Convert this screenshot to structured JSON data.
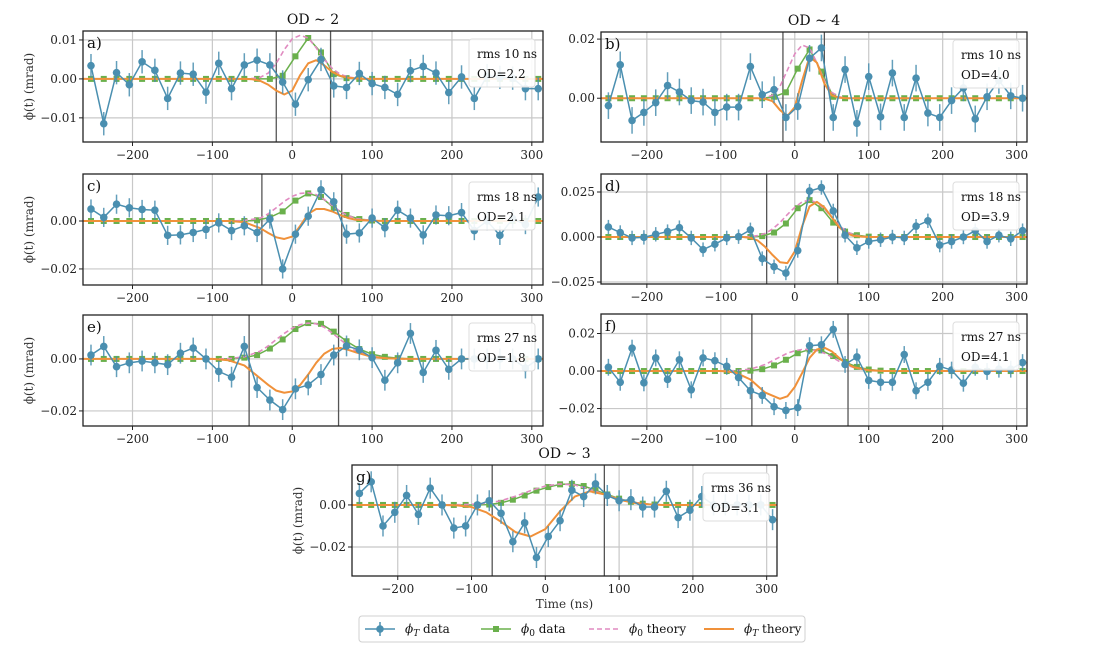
{
  "chart_data": {
    "type": "line",
    "figure_xlabel": "Time (ns)",
    "legend": {
      "placement": "bottom-center",
      "entries": [
        {
          "key": "phiT_data",
          "label": "ϕT data",
          "color": "#4a8fb0",
          "style": "line-errorbar-circle"
        },
        {
          "key": "phi0_data",
          "label": "ϕ0 data",
          "color": "#6ab04c",
          "style": "line-square"
        },
        {
          "key": "phi0_theory",
          "label": "ϕ0 theory",
          "color": "#e08ac0",
          "style": "dashed"
        },
        {
          "key": "phiT_theory",
          "label": "ϕT theory",
          "color": "#f0913a",
          "style": "solid"
        }
      ]
    },
    "column_titles": [
      "OD ∼ 2",
      "OD ∼ 4"
    ],
    "xticks": [
      -200,
      -100,
      0,
      100,
      200,
      300
    ],
    "xlim": [
      -262,
      314
    ],
    "t_data": [
      -252,
      -236,
      -220,
      -204,
      -188,
      -172,
      -156,
      -140,
      -124,
      -108,
      -92,
      -76,
      -60,
      -44,
      -28,
      -12,
      4,
      20,
      36,
      52,
      68,
      84,
      100,
      116,
      132,
      148,
      164,
      180,
      196,
      212,
      228,
      244,
      260,
      276,
      292,
      308
    ],
    "panels": [
      {
        "id": "a",
        "letter": "a)",
        "title": "OD ∼ 2",
        "ylabel": "ϕ(t) (mrad)",
        "ylim": [
          -0.0162,
          0.0123
        ],
        "yticks": [
          -0.01,
          0.0,
          0.01
        ],
        "ytick_labels": [
          "−0.01",
          "0.00",
          "0.01"
        ],
        "window": [
          -20,
          48
        ],
        "info": [
          "rms 10 ns",
          "OD=2.2"
        ],
        "phiT_data": [
          0.0034,
          -0.0115,
          0.0016,
          -0.0015,
          0.0044,
          0.0022,
          -0.005,
          0.0015,
          0.0012,
          -0.0034,
          0.004,
          -0.0025,
          0.0036,
          0.0048,
          0.0036,
          -0.0008,
          -0.0065,
          -0.0002,
          0.005,
          -0.0018,
          -0.0022,
          0.0014,
          -0.0012,
          -0.0022,
          -0.004,
          0.0021,
          0.0032,
          0.0015,
          -0.0035,
          0.0005,
          -0.005,
          0.0008,
          0.0004,
          0.0002,
          -0.0025,
          -0.0025
        ],
        "phiT_err": 0.003,
        "phi0_data": [
          0,
          0,
          0,
          0,
          0,
          0,
          0,
          0,
          0,
          0,
          0,
          0,
          0,
          0,
          0,
          0.0008,
          0.0058,
          0.0105,
          0.0068,
          0.0012,
          0.0002,
          0,
          0,
          0,
          0,
          0,
          0,
          0,
          0,
          0,
          0,
          0,
          0,
          0,
          0,
          0
        ],
        "theory_t": [
          -60,
          -50,
          -40,
          -30,
          -20,
          -10,
          0,
          10,
          20,
          30,
          40,
          50,
          60,
          70,
          80,
          90,
          100
        ],
        "phi0_theory": [
          0,
          0.0001,
          0.0004,
          0.0015,
          0.004,
          0.0075,
          0.0103,
          0.0112,
          0.0105,
          0.008,
          0.005,
          0.0027,
          0.0012,
          0.0005,
          0.0002,
          0.0001,
          0
        ],
        "phiT_theory": [
          0,
          -0.0001,
          -0.0005,
          -0.0015,
          -0.003,
          -0.004,
          -0.003,
          0.001,
          0.004,
          0.0048,
          0.0035,
          0.0018,
          0.0008,
          0.0003,
          0.0001,
          0,
          0
        ]
      },
      {
        "id": "b",
        "letter": "b)",
        "title": "OD ∼ 4",
        "ylabel": "",
        "ylim": [
          -0.0148,
          0.0224
        ],
        "yticks": [
          0.0,
          0.02
        ],
        "ytick_labels": [
          "0.00",
          "0.02"
        ],
        "window": [
          -16,
          40
        ],
        "info": [
          "rms 10 ns",
          "OD=4.0"
        ],
        "phiT_data": [
          -0.0025,
          0.0113,
          -0.0075,
          -0.0048,
          -0.0015,
          0.0043,
          0.0021,
          -0.0008,
          -0.0013,
          -0.0048,
          -0.003,
          -0.003,
          0.0107,
          0.0012,
          0.0029,
          -0.0065,
          -0.0028,
          0.0135,
          0.017,
          -0.0065,
          0.0097,
          -0.0085,
          0.0073,
          -0.0063,
          0.0085,
          -0.0065,
          0.0068,
          -0.005,
          -0.0065,
          -0.0008,
          0.0035,
          -0.007,
          0.0005,
          0.006,
          0.0008,
          0.0
        ],
        "phiT_err": 0.0045,
        "phi0_data": [
          0,
          0,
          0,
          0,
          0,
          0,
          0,
          0,
          0,
          0,
          0,
          0,
          0,
          0,
          0.0005,
          0.002,
          0.01,
          0.0165,
          0.009,
          0.0005,
          0,
          0,
          0,
          0,
          0,
          0,
          0,
          0,
          0,
          0,
          0,
          0,
          0,
          0,
          0,
          0
        ],
        "theory_t": [
          -50,
          -40,
          -30,
          -20,
          -10,
          0,
          10,
          20,
          30,
          40,
          50,
          60,
          70
        ],
        "phi0_theory": [
          0,
          0.0002,
          0.001,
          0.004,
          0.0095,
          0.015,
          0.018,
          0.017,
          0.012,
          0.006,
          0.002,
          0.0005,
          0
        ],
        "phiT_theory": [
          0,
          -0.0002,
          -0.001,
          -0.004,
          -0.006,
          -0.003,
          0.006,
          0.014,
          0.012,
          0.005,
          0.001,
          0.0002,
          0
        ]
      },
      {
        "id": "c",
        "letter": "c)",
        "title": "",
        "ylabel": "ϕ(t) (mrad)",
        "ylim": [
          -0.0267,
          0.0196
        ],
        "yticks": [
          -0.02,
          0.0
        ],
        "ytick_labels": [
          "−0.02",
          "0.00"
        ],
        "window": [
          -38,
          62
        ],
        "info": [
          "rms 18 ns",
          "OD=2.1"
        ],
        "phiT_data": [
          0.005,
          0.0015,
          0.007,
          0.0055,
          0.0048,
          0.0045,
          -0.006,
          -0.0058,
          -0.0048,
          -0.0035,
          -0.0008,
          -0.004,
          -0.002,
          -0.0048,
          0.0008,
          -0.02,
          -0.0055,
          0.002,
          0.013,
          0.008,
          -0.0055,
          -0.005,
          0.0012,
          -0.0028,
          0.0045,
          0.0012,
          -0.0058,
          0.0025,
          0.0022,
          0.0035,
          -0.004,
          0.0,
          -0.006,
          0.001,
          -0.0015,
          0.01
        ],
        "phiT_err": 0.004,
        "phi0_data": [
          0,
          0,
          0,
          0,
          0,
          0,
          0,
          0,
          0,
          0,
          0,
          0,
          0,
          0.0003,
          0.0015,
          0.004,
          0.0085,
          0.0115,
          0.01,
          0.0055,
          0.0025,
          0.0008,
          0.0002,
          0,
          0,
          0,
          0,
          0,
          0,
          0,
          0,
          0,
          0,
          0,
          0,
          0
        ],
        "theory_t": [
          -80,
          -60,
          -40,
          -30,
          -20,
          -10,
          0,
          10,
          20,
          30,
          40,
          50,
          60,
          70,
          80,
          100,
          120
        ],
        "phi0_theory": [
          0,
          0.0002,
          0.0012,
          0.003,
          0.0055,
          0.0082,
          0.0103,
          0.0115,
          0.0118,
          0.011,
          0.009,
          0.0065,
          0.004,
          0.0022,
          0.001,
          0.0002,
          0
        ],
        "phiT_theory": [
          0,
          -0.0005,
          -0.003,
          -0.005,
          -0.0068,
          -0.0075,
          -0.0065,
          -0.002,
          0.003,
          0.005,
          0.005,
          0.004,
          0.0025,
          0.0012,
          0.0005,
          0.0001,
          0
        ]
      },
      {
        "id": "d",
        "letter": "d)",
        "title": "",
        "ylabel": "",
        "ylim": [
          -0.0261,
          0.035
        ],
        "yticks": [
          -0.025,
          0.0,
          0.025
        ],
        "ytick_labels": [
          "−0.025",
          "0.000",
          "0.025"
        ],
        "window": [
          -38,
          58
        ],
        "info": [
          "rms 18 ns",
          "OD=3.9"
        ],
        "phiT_data": [
          0.0055,
          0.0025,
          -0.0005,
          -0.0002,
          0.0015,
          0.003,
          0.0052,
          -0.0005,
          -0.007,
          -0.004,
          -0.0005,
          0.0002,
          0.004,
          -0.012,
          -0.0165,
          -0.02,
          -0.0075,
          0.0255,
          0.0275,
          0.0145,
          0.001,
          -0.006,
          -0.0025,
          -0.0015,
          0.0,
          -0.0005,
          0.006,
          0.009,
          -0.0045,
          -0.0025,
          0.0,
          0.0035,
          -0.0025,
          0.001,
          -0.001,
          0.0035
        ],
        "phiT_err": 0.004,
        "phi0_data": [
          0,
          0,
          0,
          0,
          0,
          0,
          0,
          0,
          0,
          0,
          0,
          0,
          0,
          0.0005,
          0.0025,
          0.0075,
          0.016,
          0.0205,
          0.016,
          0.008,
          0.003,
          0.001,
          0.0002,
          0,
          0,
          0,
          0,
          0,
          0,
          0,
          0,
          0,
          0,
          0,
          0,
          0
        ],
        "theory_t": [
          -70,
          -60,
          -50,
          -40,
          -30,
          -20,
          -10,
          0,
          10,
          20,
          30,
          40,
          50,
          60,
          70,
          80,
          90,
          100
        ],
        "phi0_theory": [
          0,
          0.0002,
          0.0008,
          0.002,
          0.0045,
          0.008,
          0.0125,
          0.0165,
          0.0195,
          0.0205,
          0.019,
          0.0155,
          0.011,
          0.0065,
          0.003,
          0.0012,
          0.0004,
          0
        ],
        "phiT_theory": [
          0,
          -0.0005,
          -0.002,
          -0.0055,
          -0.01,
          -0.014,
          -0.0145,
          -0.008,
          0.006,
          0.017,
          0.0195,
          0.0165,
          0.011,
          0.0055,
          0.002,
          0.0006,
          0.0002,
          0
        ]
      },
      {
        "id": "e",
        "letter": "e)",
        "title": "",
        "ylabel": "ϕ(t) (mrad)",
        "ylim": [
          -0.0258,
          0.0169
        ],
        "yticks": [
          -0.02,
          0.0
        ],
        "ytick_labels": [
          "−0.02",
          "0.00"
        ],
        "window": [
          -54,
          58
        ],
        "info": [
          "rms 27 ns",
          "OD=1.8"
        ],
        "phiT_data": [
          0.0015,
          0.0048,
          -0.003,
          -0.0015,
          -0.0008,
          -0.0015,
          -0.0022,
          0.0022,
          0.0042,
          0.0,
          -0.0048,
          -0.007,
          0.0048,
          -0.011,
          -0.0158,
          -0.0195,
          -0.0115,
          -0.01,
          -0.006,
          0.0015,
          0.005,
          0.0035,
          0.0005,
          -0.0082,
          -0.0015,
          0.0098,
          -0.0052,
          0.0033,
          -0.004,
          0.0,
          0.0,
          0.0,
          0.0,
          0.0,
          -0.0035,
          0.0
        ],
        "phiT_err": 0.004,
        "phi0_data": [
          0,
          0,
          0,
          0,
          0,
          0,
          0,
          0,
          0,
          0,
          0,
          0,
          0.0005,
          0.0015,
          0.004,
          0.0075,
          0.0115,
          0.0138,
          0.0135,
          0.0105,
          0.0068,
          0.0038,
          0.0018,
          0.0008,
          0.0003,
          0,
          0,
          0,
          0,
          0,
          0,
          0,
          0,
          0,
          0,
          0
        ],
        "theory_t": [
          -100,
          -80,
          -60,
          -40,
          -30,
          -20,
          -10,
          0,
          10,
          20,
          30,
          40,
          50,
          60,
          70,
          80,
          100,
          120,
          140
        ],
        "phi0_theory": [
          0,
          0.0001,
          0.0008,
          0.003,
          0.005,
          0.0075,
          0.0098,
          0.0118,
          0.0132,
          0.0138,
          0.0135,
          0.0122,
          0.01,
          0.0075,
          0.005,
          0.003,
          0.001,
          0.0002,
          0
        ],
        "phiT_theory": [
          0,
          -0.0005,
          -0.0025,
          -0.0075,
          -0.01,
          -0.0122,
          -0.013,
          -0.0125,
          -0.01,
          -0.006,
          -0.0015,
          0.002,
          0.0038,
          0.0042,
          0.0035,
          0.0025,
          0.0008,
          0.0002,
          0
        ]
      },
      {
        "id": "f",
        "letter": "f)",
        "title": "",
        "ylabel": "",
        "ylim": [
          -0.0293,
          0.0304
        ],
        "yticks": [
          -0.02,
          0.0,
          0.02
        ],
        "ytick_labels": [
          "−0.02",
          "0.00",
          "0.02"
        ],
        "window": [
          -58,
          72
        ],
        "info": [
          "rms 27 ns",
          "OD=4.1"
        ],
        "phiT_data": [
          0.002,
          -0.006,
          0.0122,
          -0.0063,
          0.007,
          -0.0045,
          0.006,
          -0.01,
          0.007,
          0.0055,
          0.0025,
          -0.0035,
          -0.0105,
          -0.013,
          -0.019,
          -0.021,
          -0.0195,
          0.0135,
          0.014,
          0.0222,
          0.0035,
          0.0075,
          -0.005,
          -0.006,
          -0.006,
          0.0088,
          -0.0105,
          -0.006,
          0.0025,
          0.0005,
          -0.0065,
          0.002,
          -0.0002,
          0.001,
          0.001,
          0.0045
        ],
        "phiT_err": 0.0045,
        "phi0_data": [
          0,
          0,
          0,
          0,
          0,
          0,
          0,
          0,
          0,
          0,
          0,
          0,
          0.0002,
          0.001,
          0.003,
          0.006,
          0.0095,
          0.0115,
          0.011,
          0.008,
          0.0048,
          0.0022,
          0.0008,
          0.0002,
          0,
          0,
          0,
          0,
          0,
          0,
          0,
          0,
          0,
          0,
          0,
          0
        ],
        "theory_t": [
          -100,
          -80,
          -60,
          -40,
          -20,
          -10,
          0,
          10,
          20,
          30,
          40,
          50,
          60,
          70,
          80,
          100,
          120
        ],
        "phi0_theory": [
          0,
          0.0002,
          0.001,
          0.0035,
          0.0075,
          0.0095,
          0.0108,
          0.0115,
          0.0115,
          0.0108,
          0.0095,
          0.0075,
          0.0052,
          0.0032,
          0.0018,
          0.0004,
          0
        ],
        "phiT_theory": [
          0,
          -0.0008,
          -0.0045,
          -0.0115,
          -0.0148,
          -0.0135,
          -0.0085,
          -0.001,
          0.007,
          0.0115,
          0.0125,
          0.0105,
          0.007,
          0.004,
          0.002,
          0.0004,
          0
        ]
      },
      {
        "id": "g",
        "letter": "g)",
        "title": "OD ∼ 3",
        "ylabel": "ϕ(t) (mrad)",
        "ylim": [
          -0.0338,
          0.019
        ],
        "yticks": [
          -0.02,
          0.0
        ],
        "ytick_labels": [
          "−0.02",
          "0.00"
        ],
        "window": [
          -72,
          80
        ],
        "info": [
          "rms 36 ns",
          "OD=3.1"
        ],
        "xlabel": "Time (ns)",
        "phiT_data": [
          0.0055,
          0.011,
          -0.01,
          -0.0035,
          0.0045,
          -0.0045,
          0.008,
          0.0,
          -0.011,
          -0.01,
          0.0,
          0.002,
          -0.004,
          -0.0175,
          -0.0085,
          -0.025,
          -0.015,
          -0.0075,
          0.007,
          0.004,
          0.01,
          0.0045,
          0.002,
          0.0025,
          -0.001,
          -0.001,
          0.0065,
          -0.006,
          -0.0025,
          0.004,
          0.0,
          0.0,
          0.0,
          0.0,
          0.0,
          -0.007
        ],
        "phiT_err": 0.005,
        "phi0_data": [
          0,
          0,
          0,
          0,
          0,
          0,
          0,
          0,
          0,
          0,
          0,
          0.0002,
          0.001,
          0.0025,
          0.0045,
          0.0068,
          0.0085,
          0.0098,
          0.01,
          0.009,
          0.007,
          0.005,
          0.003,
          0.0015,
          0.0006,
          0.0002,
          0,
          0,
          0,
          0,
          0,
          0,
          0,
          0,
          0,
          0
        ],
        "theory_t": [
          -140,
          -120,
          -100,
          -80,
          -60,
          -40,
          -20,
          0,
          20,
          40,
          60,
          80,
          100,
          120,
          140,
          160
        ],
        "phi0_theory": [
          0,
          0.0001,
          0.0003,
          0.0008,
          0.002,
          0.0042,
          0.0068,
          0.009,
          0.01,
          0.0095,
          0.0075,
          0.005,
          0.0028,
          0.0012,
          0.0004,
          0
        ],
        "phiT_theory": [
          0,
          -0.0002,
          -0.001,
          -0.0035,
          -0.008,
          -0.013,
          -0.015,
          -0.0115,
          -0.003,
          0.004,
          0.0065,
          0.005,
          0.0025,
          0.001,
          0.0003,
          0
        ]
      }
    ]
  }
}
